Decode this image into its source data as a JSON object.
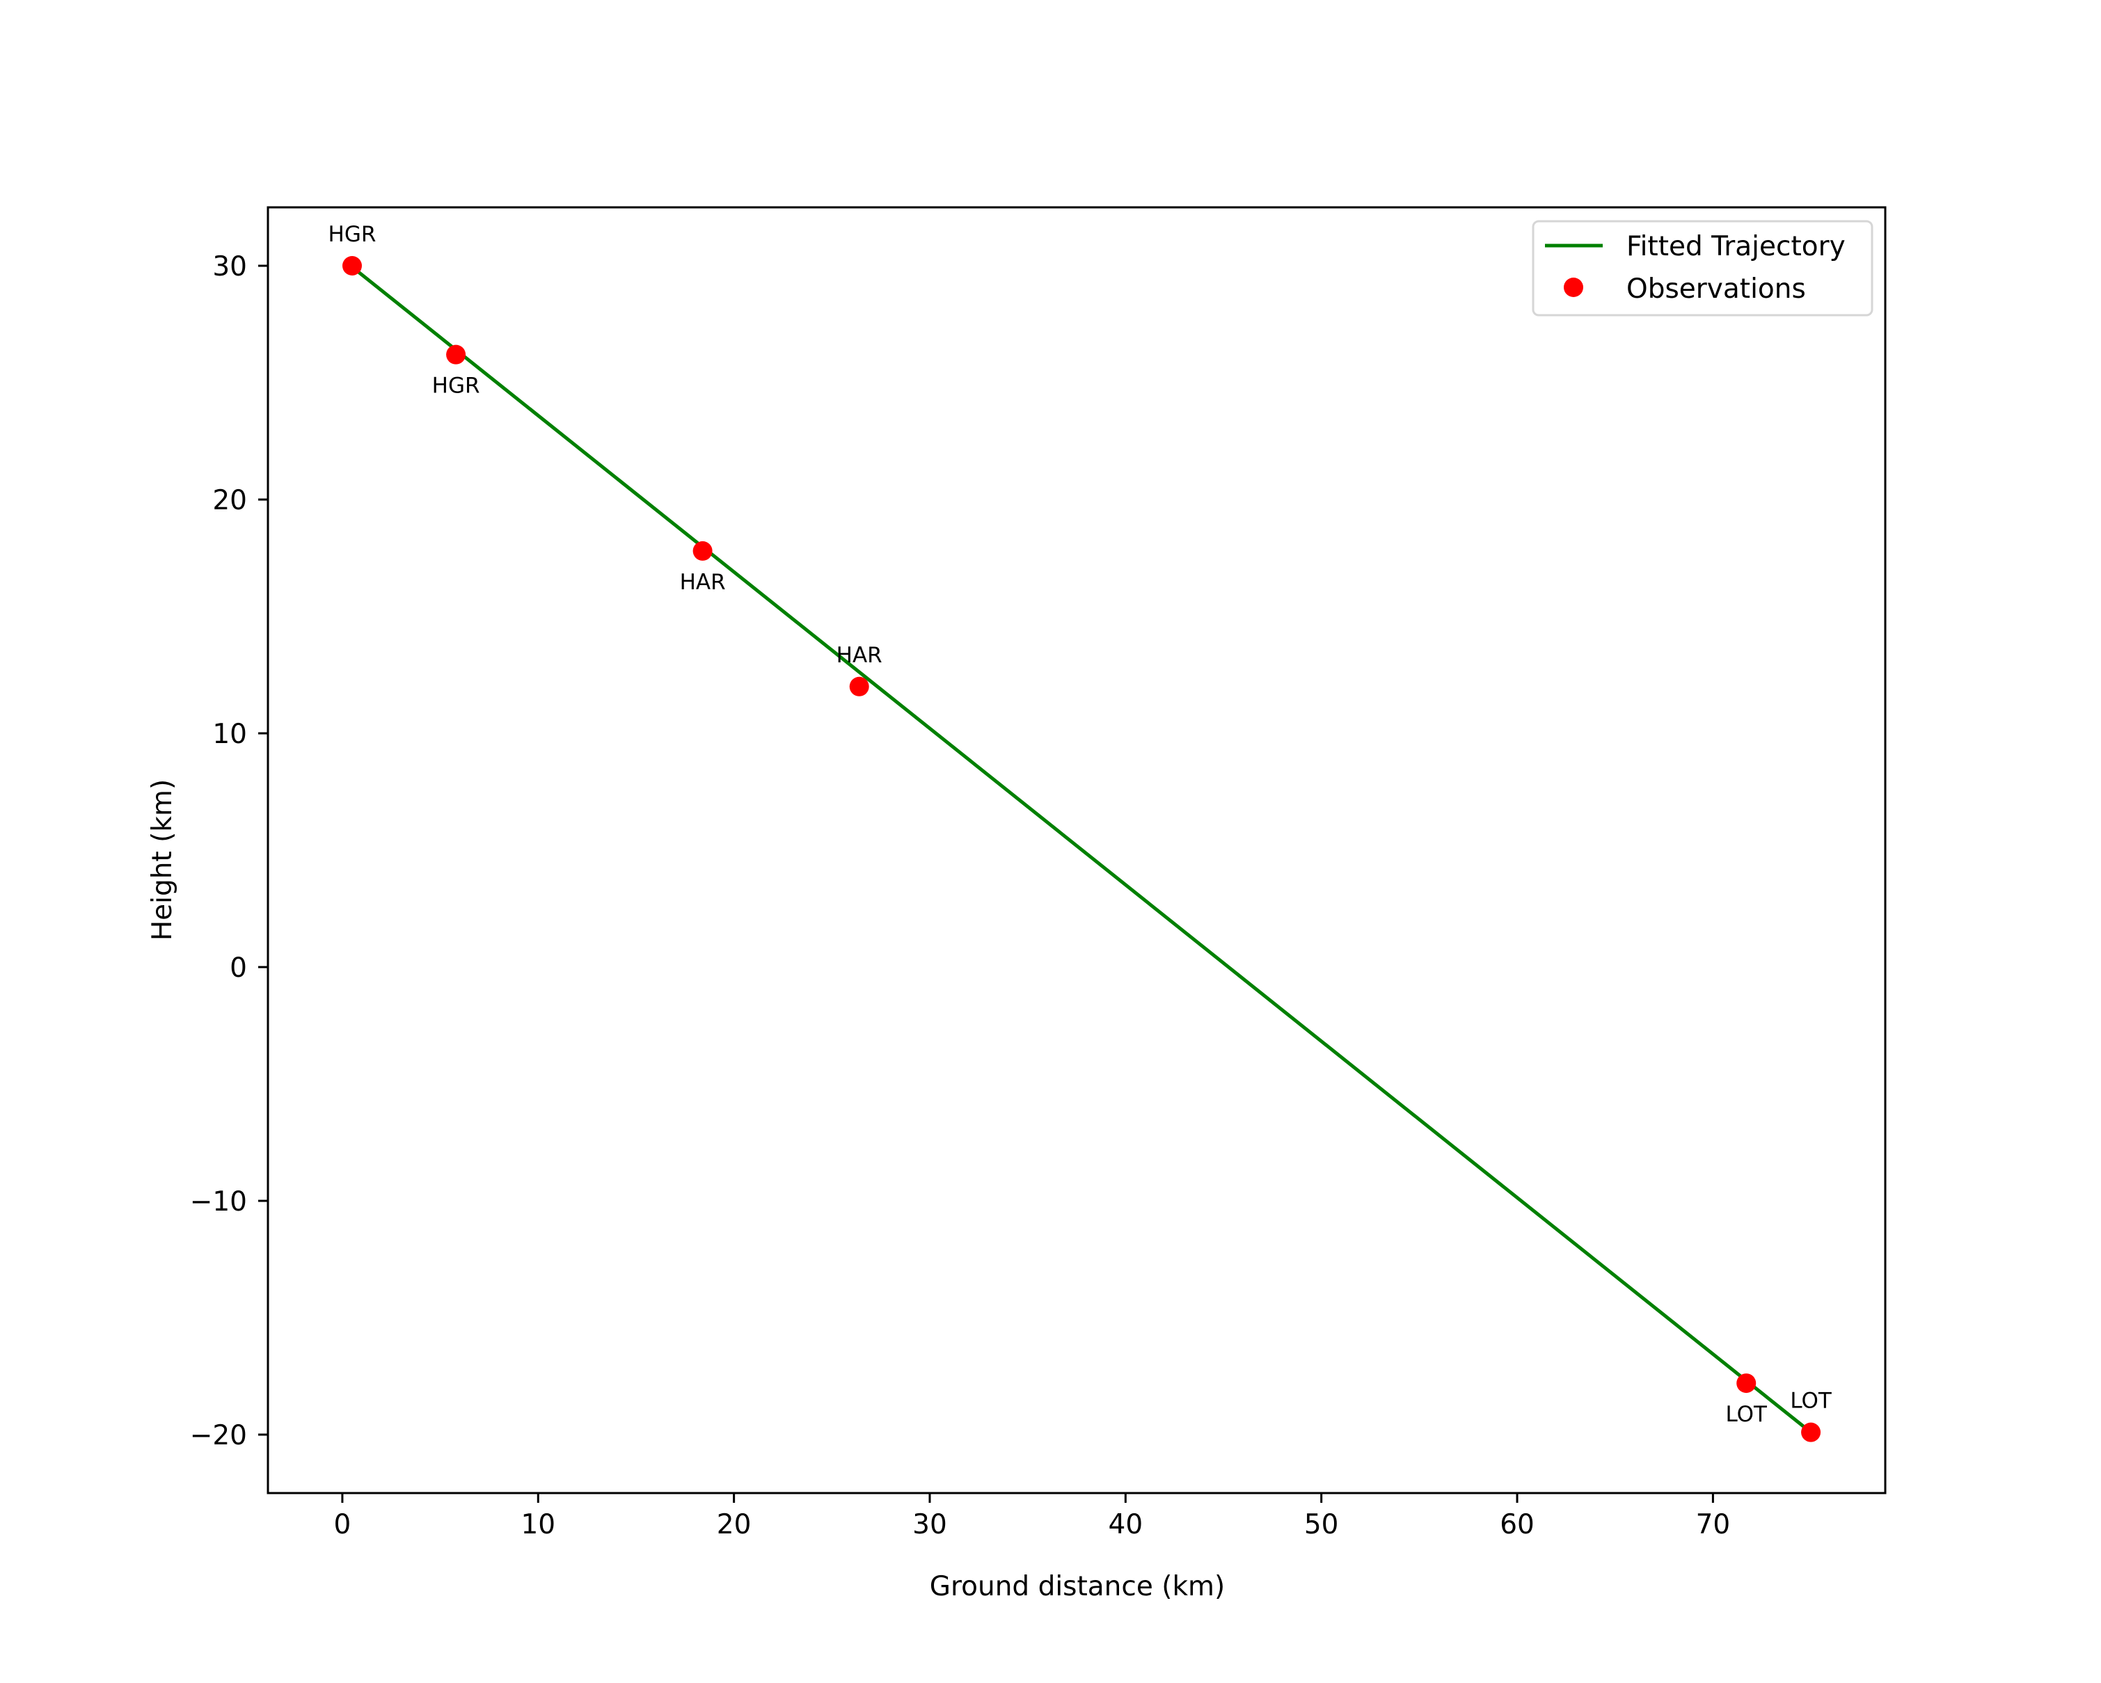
{
  "chart_data": {
    "type": "line",
    "title": "",
    "xlabel": "Ground distance (km)",
    "ylabel": "Height (km)",
    "xlim": [
      -3.8,
      78.8
    ],
    "ylim": [
      -22.5,
      32.5
    ],
    "xticks": [
      0,
      10,
      20,
      30,
      40,
      50,
      60,
      70
    ],
    "yticks": [
      -20,
      -10,
      0,
      10,
      20,
      30
    ],
    "ytick_labels": [
      "−20",
      "−10",
      "0",
      "10",
      "20",
      "30"
    ],
    "grid": false,
    "legend_position": "upper right",
    "series": [
      {
        "name": "Fitted Trajectory",
        "kind": "line",
        "color": "#008000",
        "x": [
          0.5,
          75.0
        ],
        "y": [
          29.95,
          -19.9
        ]
      },
      {
        "name": "Observations",
        "kind": "scatter",
        "color": "#ff0000",
        "x": [
          0.5,
          5.8,
          18.4,
          26.4,
          71.7,
          75.0
        ],
        "y": [
          30.0,
          26.2,
          17.8,
          12.0,
          -17.8,
          -19.9
        ],
        "labels": [
          "HGR",
          "HGR",
          "HAR",
          "HAR",
          "LOT",
          "LOT"
        ],
        "label_positions": [
          "above",
          "below",
          "below",
          "above",
          "below",
          "above"
        ]
      }
    ]
  },
  "legend": {
    "items": [
      {
        "label": "Fitted Trajectory",
        "marker": "line",
        "color": "#008000"
      },
      {
        "label": "Observations",
        "marker": "dot",
        "color": "#ff0000"
      }
    ]
  }
}
